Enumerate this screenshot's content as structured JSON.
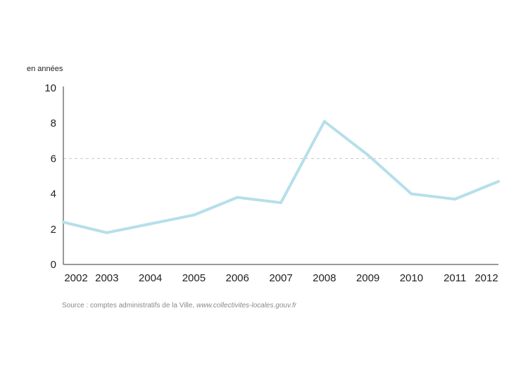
{
  "chart_data": {
    "type": "line",
    "ylabel": "en années",
    "categories": [
      "2002",
      "2003",
      "2004",
      "2005",
      "2006",
      "2007",
      "2008",
      "2009",
      "2010",
      "2011",
      "2012"
    ],
    "series": [
      {
        "values": [
          2.4,
          1.8,
          2.3,
          2.8,
          3.8,
          3.5,
          8.1,
          6.2,
          4.0,
          3.7,
          4.7
        ]
      }
    ],
    "yticks": [
      "0",
      "2",
      "4",
      "6",
      "8",
      "10"
    ],
    "ylim": [
      0,
      10
    ],
    "reference_line": 6,
    "grid": false,
    "colors": {
      "line": "#b6dfea",
      "reference": "#c8c8c8",
      "axis": "#333333",
      "text": "#222222"
    }
  },
  "source": {
    "prefix": "Source : comptes administratifs de la Ville, ",
    "link": "www.collectivites-locales.gouv.fr"
  }
}
